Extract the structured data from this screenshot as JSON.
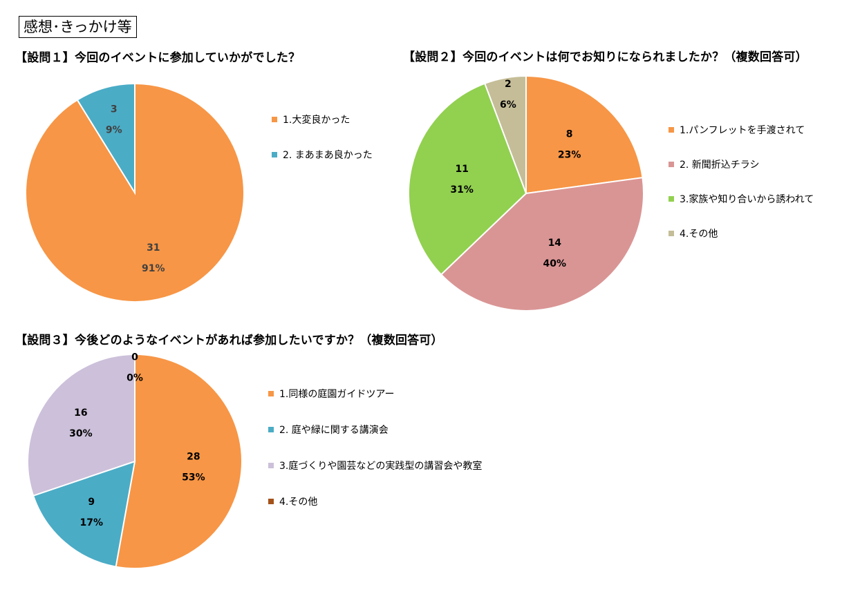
{
  "page_title": "感想･きっかけ等",
  "chart_data": [
    {
      "type": "pie",
      "title": "【設問１】今回のイベントに参加していかがでした？",
      "slices": [
        {
          "label": "1.大変良かった",
          "value": 31,
          "percent": "91%",
          "color": "#F79646"
        },
        {
          "label": "2. まあまあ良かった",
          "value": 3,
          "percent": "9%",
          "color": "#4BACC6"
        }
      ],
      "data_label_color": "#404040"
    },
    {
      "type": "pie",
      "title": "【設問２】今回のイベントは何でお知りになられましたか？（複数回答可）",
      "slices": [
        {
          "label": "1.パンフレットを手渡されて",
          "value": 8,
          "percent": "23%",
          "color": "#F79646"
        },
        {
          "label": "2. 新聞折込チラシ",
          "value": 14,
          "percent": "40%",
          "color": "#D99594"
        },
        {
          "label": "3.家族や知り合いから誘われて",
          "value": 11,
          "percent": "31%",
          "color": "#92D050"
        },
        {
          "label": "4.その他",
          "value": 2,
          "percent": "6%",
          "color": "#C4BD97"
        }
      ],
      "data_label_color": "#000000"
    },
    {
      "type": "pie",
      "title": "【設問３】今後どのようなイベントがあれば参加したいですか？（複数回答可）",
      "slices": [
        {
          "label": "1.同様の庭園ガイドツアー",
          "value": 28,
          "percent": "53%",
          "color": "#F79646"
        },
        {
          "label": "2. 庭や緑に関する講演会",
          "value": 9,
          "percent": "17%",
          "color": "#4BACC6"
        },
        {
          "label": "3.庭づくりや園芸などの実践型の講習会や教室",
          "value": 16,
          "percent": "30%",
          "color": "#CCC0DA"
        },
        {
          "label": "4.その他",
          "value": 0,
          "percent": "0%",
          "color": "#A5521A"
        }
      ],
      "data_label_color": "#000000"
    }
  ]
}
